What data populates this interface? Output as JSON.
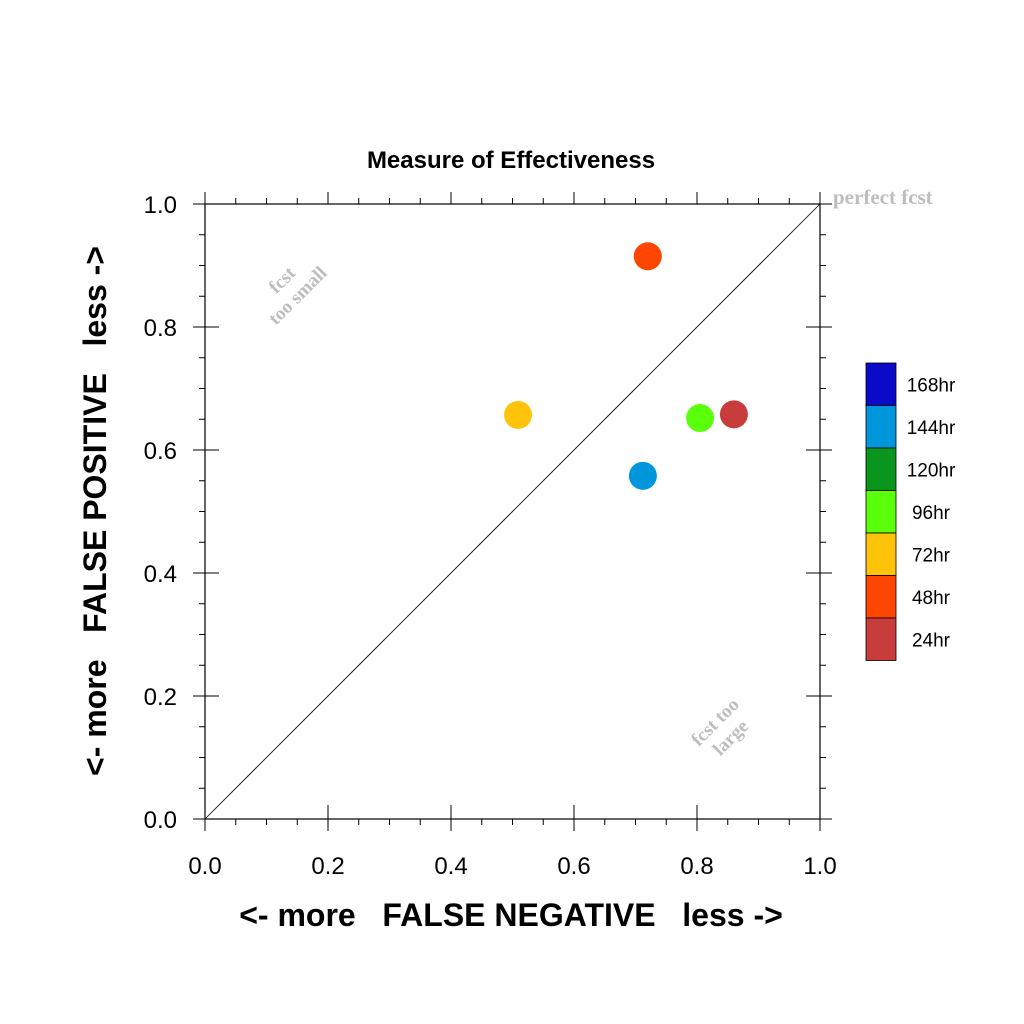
{
  "chart_data": {
    "type": "scatter",
    "title": "Measure of Effectiveness",
    "xlabel": "<- more   FALSE NEGATIVE   less ->",
    "ylabel": "<- more   FALSE POSITIVE   less ->",
    "xlim": [
      0.0,
      1.0
    ],
    "ylim": [
      0.0,
      1.0
    ],
    "x_ticks": [
      "0.0",
      "0.2",
      "0.4",
      "0.6",
      "0.8",
      "1.0"
    ],
    "y_ticks": [
      "0.0",
      "0.2",
      "0.4",
      "0.6",
      "0.8",
      "1.0"
    ],
    "grid": false,
    "diagonal_line": true,
    "annotations": {
      "perfect": "perfect fcst",
      "too_small": [
        "fcst",
        "too small"
      ],
      "too_large": [
        "fcst too",
        "large"
      ]
    },
    "legend_position": "right",
    "series": [
      {
        "name": "168hr",
        "color": "#0a0ac8",
        "points": []
      },
      {
        "name": "144hr",
        "color": "#0096dc",
        "points": [
          [
            0.712,
            0.558
          ]
        ]
      },
      {
        "name": "120hr",
        "color": "#0a961e",
        "points": []
      },
      {
        "name": "96hr",
        "color": "#5aff0a",
        "points": [
          [
            0.805,
            0.652
          ]
        ]
      },
      {
        "name": "72hr",
        "color": "#ffc30a",
        "points": [
          [
            0.509,
            0.657
          ]
        ]
      },
      {
        "name": "48hr",
        "color": "#ff4600",
        "points": [
          [
            0.72,
            0.915
          ]
        ]
      },
      {
        "name": "24hr",
        "color": "#c83c3c",
        "points": [
          [
            0.86,
            0.658
          ]
        ]
      }
    ]
  }
}
